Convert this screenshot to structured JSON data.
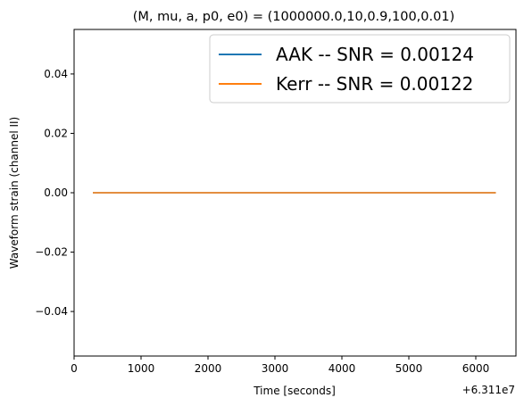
{
  "chart_data": {
    "type": "line",
    "title": "(M, mu, a, p0, e0) = (1000000.0,10,0.9,100,0.01)",
    "xlabel": "Time [seconds]",
    "ylabel": "Waveform strain (channel II)",
    "x_offset_label": "+6.311e7",
    "xlim": [
      0,
      6600
    ],
    "ylim": [
      -0.055,
      0.055
    ],
    "x_ticks": [
      0,
      1000,
      2000,
      3000,
      4000,
      5000,
      6000
    ],
    "x_tick_labels": [
      "0",
      "1000",
      "2000",
      "3000",
      "4000",
      "5000",
      "6000"
    ],
    "y_ticks": [
      -0.04,
      -0.02,
      0.0,
      0.02,
      0.04
    ],
    "y_tick_labels": [
      "−0.04",
      "−0.02",
      "0.00",
      "0.02",
      "0.04"
    ],
    "grid": false,
    "legend_position": "top-right",
    "series": [
      {
        "name": "AAK -- SNR = 0.00124",
        "color": "#1f77b4",
        "x": [
          280,
          6300
        ],
        "y": [
          0.0,
          0.0
        ]
      },
      {
        "name": "Kerr -- SNR = 0.00122",
        "color": "#ff7f0e",
        "x": [
          280,
          6300
        ],
        "y": [
          0.0,
          0.0
        ]
      }
    ]
  }
}
